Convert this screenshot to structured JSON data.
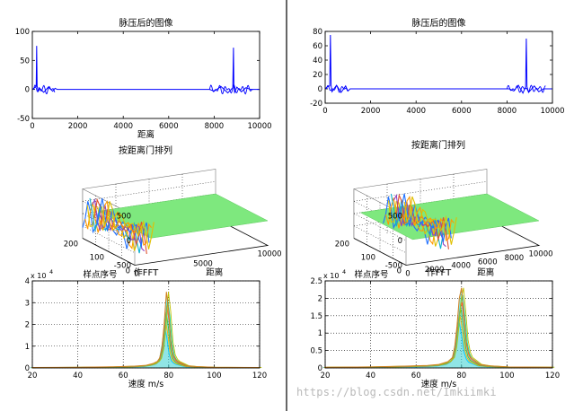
{
  "watermark": "https://blog.csdn.net/Imkiimki",
  "colors": {
    "signal": "#0000ff",
    "surface": "#7ee87e",
    "grid": "#000000",
    "divider": "#000000"
  },
  "chart_data": [
    {
      "id": "left-pulse",
      "type": "line",
      "title": "脉压后的图像",
      "xlabel": "距离",
      "ylabel": "",
      "xlim": [
        0,
        10000
      ],
      "ylim": [
        -50,
        100
      ],
      "xticks": [
        "0",
        "2000",
        "4000",
        "6000",
        "8000",
        "10000"
      ],
      "yticks": [
        "100",
        "50",
        "0",
        "-50"
      ],
      "series": [
        {
          "x": [
            0,
            100,
            170,
            190,
            210,
            260,
            300,
            500,
            700,
            900,
            1000,
            1100,
            7800,
            8000,
            8300,
            8600,
            8820,
            8850,
            8870,
            8900,
            9000,
            9200,
            9400,
            9600,
            10000
          ],
          "y": [
            0,
            3,
            5,
            75,
            6,
            -4,
            3,
            -5,
            4,
            -3,
            2,
            0,
            0,
            -3,
            5,
            -6,
            3,
            72,
            3,
            -5,
            4,
            -4,
            3,
            0,
            0
          ]
        }
      ]
    },
    {
      "id": "left-surface",
      "type": "other",
      "title": "按距离门排列",
      "xlabel": "距离",
      "ylabel": "样点序号",
      "xlim": [
        0,
        10000
      ],
      "ylim": [
        0,
        200
      ],
      "zlim": [
        -500,
        500
      ],
      "xticks": [
        "0",
        "5000",
        "10000"
      ],
      "yticks": [
        "0",
        "100",
        "200"
      ],
      "zticks": [
        "500",
        "0",
        "-500"
      ]
    },
    {
      "id": "left-fft",
      "type": "area",
      "title": "作FFT",
      "xlabel": "速度 m/s",
      "ylabel": "",
      "exponent": "x 10",
      "exponent_power": "4",
      "xlim": [
        20,
        120
      ],
      "ylim": [
        0,
        4
      ],
      "xticks": [
        "20",
        "40",
        "60",
        "80",
        "100",
        "120"
      ],
      "yticks": [
        "4",
        "3",
        "2",
        "1",
        "0"
      ],
      "series": [
        {
          "x": [
            20,
            40,
            55,
            65,
            70,
            73,
            75,
            76,
            77,
            78,
            79,
            80,
            81,
            82,
            83,
            84,
            86,
            88,
            92,
            100,
            120
          ],
          "y": [
            0.02,
            0.03,
            0.05,
            0.08,
            0.12,
            0.2,
            0.3,
            0.45,
            0.9,
            2.0,
            3.5,
            2.6,
            1.2,
            0.6,
            0.4,
            0.3,
            0.2,
            0.1,
            0.06,
            0.03,
            0.02
          ]
        }
      ]
    },
    {
      "id": "right-pulse",
      "type": "line",
      "title": "脉压后的图像",
      "xlabel": "",
      "ylabel": "",
      "xlim": [
        0,
        10000
      ],
      "ylim": [
        -20,
        80
      ],
      "xticks": [
        "0",
        "2000",
        "4000",
        "6000",
        "8000",
        "10000"
      ],
      "yticks": [
        "80",
        "60",
        "40",
        "20",
        "0",
        "-20"
      ],
      "series": [
        {
          "x": [
            0,
            100,
            200,
            230,
            260,
            300,
            500,
            700,
            900,
            1000,
            1100,
            8100,
            8300,
            8500,
            8700,
            8820,
            8850,
            8880,
            8950,
            9200,
            9400,
            9600,
            10000
          ],
          "y": [
            0,
            3,
            4,
            75,
            5,
            -4,
            5,
            -5,
            4,
            -3,
            0,
            0,
            -3,
            5,
            -6,
            3,
            70,
            3,
            -5,
            4,
            -4,
            0,
            0
          ]
        }
      ]
    },
    {
      "id": "right-surface",
      "type": "other",
      "title": "按距离门排列",
      "xlabel": "距离",
      "ylabel": "样点序号",
      "xlim": [
        0,
        10000
      ],
      "ylim": [
        0,
        200
      ],
      "zlim": [
        -500,
        500
      ],
      "xticks": [
        "0",
        "2000",
        "4000",
        "6000",
        "8000",
        "10000"
      ],
      "yticks": [
        "0",
        "100",
        "200"
      ],
      "zticks": [
        "500",
        "0",
        "-500"
      ]
    },
    {
      "id": "right-fft",
      "type": "area",
      "title": "作FFT",
      "xlabel": "速度 m/s",
      "ylabel": "",
      "exponent": "x 10",
      "exponent_power": "4",
      "xlim": [
        20,
        120
      ],
      "ylim": [
        0,
        2.5
      ],
      "xticks": [
        "20",
        "40",
        "60",
        "80",
        "100",
        "120"
      ],
      "yticks": [
        "2.5",
        "2",
        "1.5",
        "1",
        "0.5",
        "0"
      ],
      "series": [
        {
          "x": [
            20,
            40,
            55,
            65,
            70,
            74,
            76,
            77,
            78,
            79,
            80,
            81,
            82,
            83,
            84,
            86,
            88,
            92,
            100,
            120
          ],
          "y": [
            0.02,
            0.03,
            0.05,
            0.07,
            0.1,
            0.18,
            0.3,
            0.6,
            1.2,
            2.0,
            2.3,
            1.6,
            0.8,
            0.45,
            0.3,
            0.2,
            0.1,
            0.06,
            0.03,
            0.02
          ]
        }
      ]
    }
  ]
}
